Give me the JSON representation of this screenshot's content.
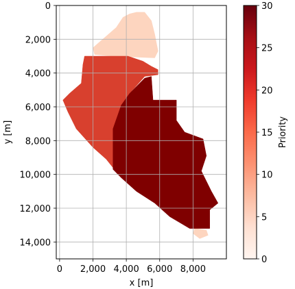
{
  "chart_data": {
    "type": "heatmap",
    "xlabel": "x [m]",
    "ylabel": "y [m]",
    "xlim": [
      -200,
      10000
    ],
    "ylim": [
      15000,
      0
    ],
    "x_ticks": [
      0,
      2000,
      4000,
      6000,
      8000
    ],
    "x_tick_labels": [
      "0",
      "2,000",
      "4,000",
      "6,000",
      "8,000"
    ],
    "y_ticks": [
      0,
      2000,
      4000,
      6000,
      8000,
      10000,
      12000,
      14000
    ],
    "y_tick_labels": [
      "0",
      "2,000",
      "4,000",
      "6,000",
      "8,000",
      "10,000",
      "12,000",
      "14,000"
    ],
    "grid": true,
    "colorbar": {
      "label": "Priority",
      "range": [
        0,
        30
      ],
      "ticks": [
        0,
        5,
        10,
        15,
        20,
        25,
        30
      ],
      "tick_labels": [
        "0",
        "5",
        "10",
        "15",
        "20",
        "25",
        "30"
      ],
      "colormap": "Reds",
      "colors": [
        "#fff5f0",
        "#fee0d2",
        "#fcbba1",
        "#fc9272",
        "#fb6a4a",
        "#ef3b2c",
        "#cb181d",
        "#a50f15",
        "#67000d"
      ]
    },
    "regions": [
      {
        "priority": 1,
        "color": "#fdd5bf",
        "polygon": [
          [
            4600,
            400
          ],
          [
            5100,
            400
          ],
          [
            5500,
            900
          ],
          [
            5700,
            1700
          ],
          [
            5900,
            2700
          ],
          [
            5700,
            3100
          ],
          [
            3200,
            3000
          ],
          [
            2100,
            2900
          ],
          [
            2000,
            2500
          ],
          [
            2700,
            1900
          ],
          [
            3400,
            1300
          ],
          [
            3800,
            700
          ],
          [
            4200,
            500
          ]
        ]
      },
      {
        "priority": 1,
        "color": "#fdd5bf",
        "polygon": [
          [
            8100,
            13200
          ],
          [
            8800,
            13300
          ],
          [
            8900,
            13600
          ],
          [
            8400,
            13800
          ],
          [
            8000,
            13500
          ]
        ]
      },
      {
        "priority": 23,
        "color": "#d8402e",
        "polygon": [
          [
            1500,
            3000
          ],
          [
            4100,
            3000
          ],
          [
            5000,
            3300
          ],
          [
            5500,
            3600
          ],
          [
            5900,
            3800
          ],
          [
            5900,
            4100
          ],
          [
            5100,
            4200
          ],
          [
            4200,
            5200
          ],
          [
            3700,
            5900
          ],
          [
            3200,
            7300
          ],
          [
            3200,
            9600
          ],
          [
            2800,
            9100
          ],
          [
            2000,
            8400
          ],
          [
            1000,
            7300
          ],
          [
            500,
            6300
          ],
          [
            200,
            5600
          ],
          [
            600,
            5200
          ],
          [
            1300,
            4600
          ],
          [
            1400,
            3500
          ]
        ]
      },
      {
        "priority": 30,
        "color": "#7f0000",
        "polygon": [
          [
            5500,
            4200
          ],
          [
            5600,
            5600
          ],
          [
            7000,
            5600
          ],
          [
            7000,
            6800
          ],
          [
            7500,
            7500
          ],
          [
            8600,
            7900
          ],
          [
            8800,
            8900
          ],
          [
            8500,
            9800
          ],
          [
            9100,
            11000
          ],
          [
            9500,
            11700
          ],
          [
            9000,
            12100
          ],
          [
            9000,
            13200
          ],
          [
            7800,
            13200
          ],
          [
            6600,
            12500
          ],
          [
            5700,
            11700
          ],
          [
            4600,
            11000
          ],
          [
            3700,
            10200
          ],
          [
            3200,
            9700
          ],
          [
            3200,
            7300
          ],
          [
            3700,
            5900
          ],
          [
            4200,
            5200
          ],
          [
            5100,
            4300
          ]
        ]
      }
    ]
  }
}
